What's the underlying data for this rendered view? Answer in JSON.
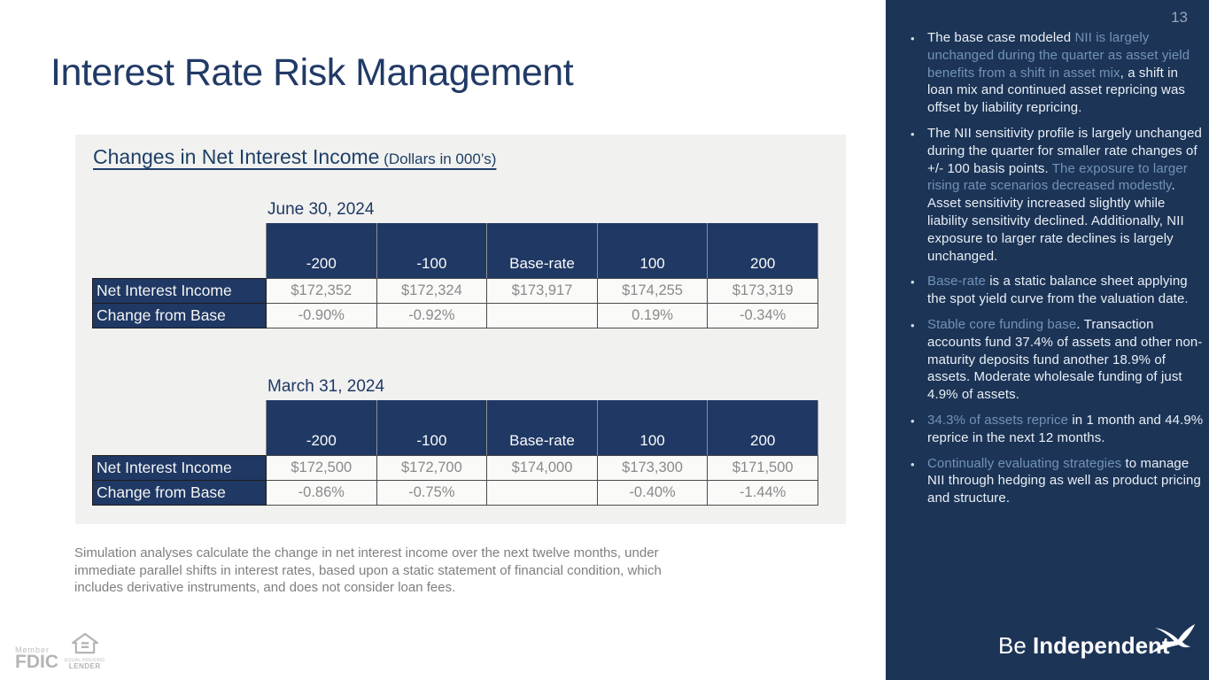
{
  "slide": {
    "page_number": "13",
    "title": "Interest Rate Risk Management",
    "panel": {
      "heading": "Changes in Net Interest Income",
      "heading_suffix": " (Dollars in 000’s)",
      "tables": [
        {
          "date": "June 30, 2024",
          "columns": [
            "-200",
            "-100",
            "Base-rate",
            "100",
            "200"
          ],
          "rows": [
            {
              "label": "Net Interest Income",
              "values": [
                "$172,352",
                "$172,324",
                "$173,917",
                "$174,255",
                "$173,319"
              ]
            },
            {
              "label": "Change from Base",
              "values": [
                "-0.90%",
                "-0.92%",
                "",
                "0.19%",
                "-0.34%"
              ]
            }
          ]
        },
        {
          "date": "March 31, 2024",
          "columns": [
            "-200",
            "-100",
            "Base-rate",
            "100",
            "200"
          ],
          "rows": [
            {
              "label": "Net Interest Income",
              "values": [
                "$172,500",
                "$172,700",
                "$174,000",
                "$173,300",
                "$171,500"
              ]
            },
            {
              "label": "Change from Base",
              "values": [
                "-0.86%",
                "-0.75%",
                "",
                "-0.40%",
                "-1.44%"
              ]
            }
          ]
        }
      ]
    },
    "footnote": "Simulation analyses calculate the change in net interest income over the next twelve months, under immediate parallel shifts in interest rates, based upon a static statement of financial condition, which includes derivative instruments, and does not consider loan fees.",
    "footer": {
      "member_label": "Member",
      "fdic_label": "FDIC",
      "ehl_top": "EQUAL HOUSING",
      "ehl_bottom": "LENDER",
      "tagline_regular": "Be ",
      "tagline_bold": "Independent",
      "bird_icon": "flying-bird-icon"
    }
  },
  "sidebar": {
    "bullets": [
      {
        "segments": [
          {
            "style": "normal",
            "text": "The base case modeled "
          },
          {
            "style": "accent",
            "text": "NII is largely unchanged during the quarter as asset yield benefits from a shift in asset mix"
          },
          {
            "style": "normal",
            "text": ", a shift in loan mix and continued asset repricing was offset by liability repricing."
          }
        ]
      },
      {
        "segments": [
          {
            "style": "normal",
            "text": "The NII sensitivity profile is largely unchanged during the quarter for smaller rate changes of +/- 100 basis points. "
          },
          {
            "style": "accent",
            "text": "The exposure to larger rising rate scenarios decreased modestly"
          },
          {
            "style": "normal",
            "text": ". Asset sensitivity  increased slightly while liability sensitivity declined. Additionally, NII exposure to larger rate declines is largely unchanged."
          }
        ]
      },
      {
        "segments": [
          {
            "style": "accent",
            "text": "Base-rate"
          },
          {
            "style": "normal",
            "text": " is a static balance sheet applying the spot yield curve from the valuation date."
          }
        ]
      },
      {
        "segments": [
          {
            "style": "accent",
            "text": "Stable core funding base"
          },
          {
            "style": "normal",
            "text": ". Transaction accounts fund 37.4% of assets and other non-maturity deposits fund another 18.9% of assets. Moderate wholesale funding of just 4.9% of assets."
          }
        ]
      },
      {
        "segments": [
          {
            "style": "accent",
            "text": "34.3% of assets reprice"
          },
          {
            "style": "normal",
            "text": " in 1 month and 44.9% reprice in the next 12 months."
          }
        ]
      },
      {
        "segments": [
          {
            "style": "accent",
            "text": "Continually evaluating strategies"
          },
          {
            "style": "normal",
            "text": " to manage NII through hedging as well as product pricing and structure."
          }
        ]
      }
    ]
  },
  "colors": {
    "navy": "#1F3864",
    "sidebar_bg": "#1C3456",
    "accent_blue": "#7193B7",
    "panel_bg": "#F1F1F0",
    "value_gray": "#8A8A8A"
  }
}
